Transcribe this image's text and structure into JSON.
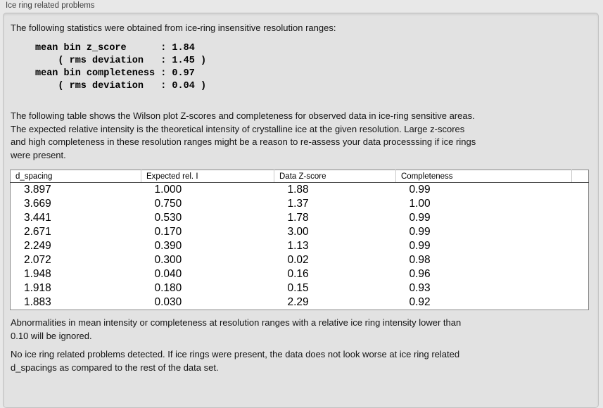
{
  "colors": {
    "page_bg": "#e8e8e8",
    "panel_bg": "#e2e2e2",
    "panel_border": "#c2c2c2",
    "table_bg": "#ffffff",
    "table_border": "#8a8a8a",
    "text": "#111111"
  },
  "panel": {
    "title": "Ice ring related problems"
  },
  "sections": {
    "intro": "The following statistics were obtained from ice-ring insensitive resolution ranges:",
    "stats_lines": [
      "mean bin z_score      : 1.84",
      "    ( rms deviation   : 1.45 )",
      "mean bin completeness : 0.97",
      "    ( rms deviation   : 0.04 )"
    ],
    "table_description_lines": [
      "The following table shows the Wilson plot Z-scores and completeness for observed data in ice-ring sensitive areas.",
      "The expected relative intensity is the theoretical intensity of crystalline ice at the given resolution. Large z-scores",
      "and high completeness in these resolution ranges might be a reason to re-assess your data processsing if ice rings",
      "were present."
    ],
    "ignore_note_lines": [
      "Abnormalities in mean intensity or completeness at resolution ranges with a relative ice ring intensity lower than",
      "0.10 will be ignored."
    ],
    "conclusion_lines": [
      "No ice ring related problems detected. If ice rings were present, the data does not look worse at ice ring related",
      "d_spacings as compared to the rest of the data set."
    ]
  },
  "table": {
    "columns": [
      "d_spacing",
      "Expected rel. I",
      "Data Z-score",
      "Completeness"
    ],
    "rows": [
      [
        "3.897",
        "1.000",
        "1.88",
        "0.99"
      ],
      [
        "3.669",
        "0.750",
        "1.37",
        "1.00"
      ],
      [
        "3.441",
        "0.530",
        "1.78",
        "0.99"
      ],
      [
        "2.671",
        "0.170",
        "3.00",
        "0.99"
      ],
      [
        "2.249",
        "0.390",
        "1.13",
        "0.99"
      ],
      [
        "2.072",
        "0.300",
        "0.02",
        "0.98"
      ],
      [
        "1.948",
        "0.040",
        "0.16",
        "0.96"
      ],
      [
        "1.918",
        "0.180",
        "0.15",
        "0.93"
      ],
      [
        "1.883",
        "0.030",
        "2.29",
        "0.92"
      ]
    ]
  }
}
